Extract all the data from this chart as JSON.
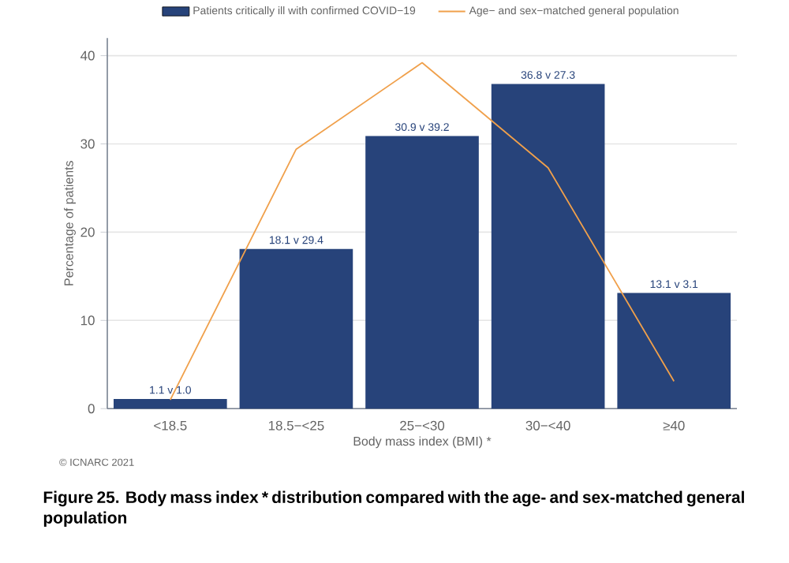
{
  "chart_data": {
    "type": "bar",
    "xlabel": "Body mass index (BMI) *",
    "ylabel": "Percentage of patients",
    "categories": [
      "<18.5",
      "18.5−<25",
      "25−<30",
      "30−<40",
      "≥40"
    ],
    "series": [
      {
        "name": "Patients critically ill with confirmed COVID−19",
        "color": "#27437a",
        "values": [
          1.1,
          18.1,
          30.9,
          36.8,
          13.1
        ],
        "value_labels": [
          "1.1 v 1.0",
          "18.1 v 29.4",
          "30.9 v 39.2",
          "36.8 v 27.3",
          "13.1 v 3.1"
        ]
      },
      {
        "name": "Age− and sex−matched general population",
        "type": "line",
        "color": "#f0a04b",
        "values": [
          1.0,
          29.4,
          39.2,
          27.3,
          3.1
        ]
      }
    ],
    "ylim": [
      0,
      42
    ],
    "yticks": [
      0,
      10,
      20,
      30,
      40
    ],
    "grid": "y",
    "legend": "top",
    "annotations": [
      "© ICNARC 2021",
      "Figure 25. Body mass index * distribution compared with the age- and sex-matched general population"
    ]
  }
}
